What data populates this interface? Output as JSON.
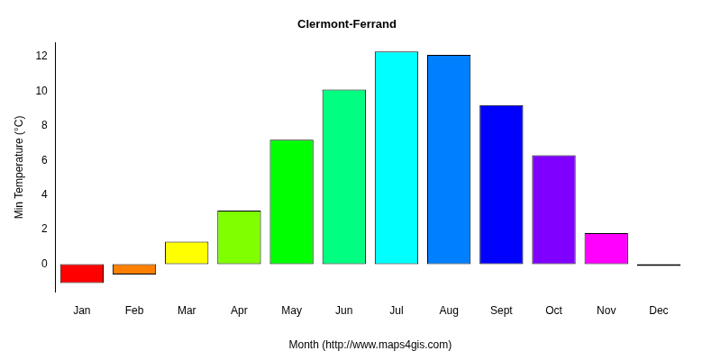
{
  "chart_data": {
    "type": "bar",
    "title": "Clermont-Ferrand",
    "x_label": "Month (http://www.maps4gis.com)",
    "y_label": "Min Temperature (°C)",
    "categories": [
      "Jan",
      "Feb",
      "Mar",
      "Apr",
      "May",
      "Jun",
      "Jul",
      "Aug",
      "Sept",
      "Oct",
      "Nov",
      "Dec"
    ],
    "values": [
      -1.1,
      -0.6,
      1.3,
      3.1,
      7.2,
      10.1,
      12.3,
      12.1,
      9.2,
      6.3,
      1.8,
      -0.1
    ],
    "colors": [
      "#FF0000",
      "#FF8000",
      "#FFFF00",
      "#80FF00",
      "#00FF00",
      "#00FF80",
      "#00FFFF",
      "#0080FF",
      "#0000FF",
      "#8000FF",
      "#FF00FF",
      "#FF0080"
    ],
    "ylim": [
      -1.6,
      12.8
    ],
    "yticks": [
      0,
      2,
      4,
      6,
      8,
      10,
      12
    ],
    "grid": false
  }
}
